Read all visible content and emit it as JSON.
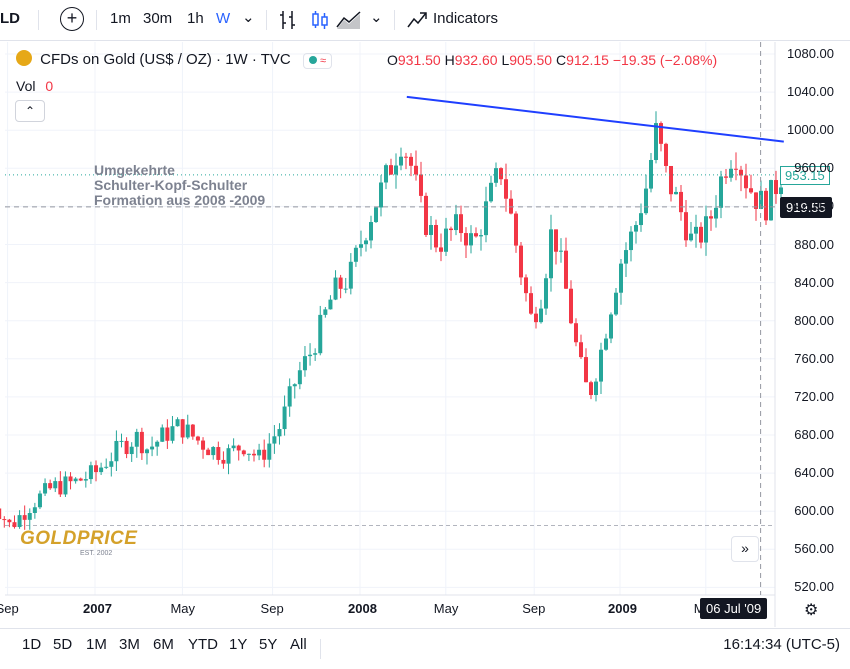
{
  "toolbar": {
    "symbol_fragment": "LD",
    "intervals": [
      "1m",
      "30m",
      "1h",
      "W"
    ],
    "indicators_label": "Indicators"
  },
  "legend": {
    "title": "CFDs on Gold (US$ / OZ) · 1W · TVC",
    "o_key": "O",
    "o_val": "931.50",
    "h_key": "H",
    "h_val": "932.60",
    "l_key": "L",
    "l_val": "905.50",
    "c_key": "C",
    "c_val": "912.15",
    "change": "−19.35 (−2.08%)",
    "vol_label": "Vol",
    "vol_value": "0"
  },
  "annotation": {
    "line1": "Umgekehrte",
    "line2": "Schulter-Kopf-Schulter",
    "line3": "Formation aus 2008 -2009"
  },
  "logo": {
    "text": "GOLDPRICE",
    "sub": "EST. 2002"
  },
  "price_tags": {
    "last": "953.15",
    "crosshair": "919.55",
    "time_cursor": "06 Jul '09"
  },
  "bottom": {
    "ranges": [
      "1D",
      "5D",
      "1M",
      "3M",
      "6M",
      "YTD",
      "1Y",
      "5Y",
      "All"
    ],
    "clock": "16:14:34 (UTC-5)"
  },
  "colors": {
    "up": "#26a69a",
    "down": "#f23645",
    "trendline": "#1f3fff",
    "accent": "#2962ff"
  },
  "chart_data": {
    "type": "candlestick",
    "y_axis_ticks": [
      1080,
      1040,
      1000,
      960,
      920,
      880,
      840,
      800,
      760,
      720,
      680,
      640,
      600,
      560,
      520
    ],
    "y_tick_labels": [
      "1080.00",
      "1040.00",
      "1000.00",
      "960.00",
      "920.00",
      "880.00",
      "840.00",
      "800.00",
      "760.00",
      "720.00",
      "680.00",
      "640.00",
      "600.00",
      "560.00",
      "520.00"
    ],
    "ylim": [
      505,
      1095
    ],
    "x_tick_labels": [
      "Sep",
      "2007",
      "May",
      "Sep",
      "2008",
      "May",
      "Sep",
      "2009",
      "M"
    ],
    "x_tick_bold": [
      false,
      true,
      false,
      false,
      true,
      false,
      false,
      true,
      false
    ],
    "price_path": [
      [
        2006.6,
        616
      ],
      [
        2006.68,
        584
      ],
      [
        2006.76,
        608
      ],
      [
        2006.84,
        625
      ],
      [
        2006.92,
        630
      ],
      [
        2007.0,
        640
      ],
      [
        2007.04,
        652
      ],
      [
        2007.1,
        668
      ],
      [
        2007.16,
        678
      ],
      [
        2007.2,
        665
      ],
      [
        2007.26,
        680
      ],
      [
        2007.32,
        690
      ],
      [
        2007.38,
        676
      ],
      [
        2007.44,
        665
      ],
      [
        2007.5,
        660
      ],
      [
        2007.56,
        670
      ],
      [
        2007.62,
        655
      ],
      [
        2007.66,
        672
      ],
      [
        2007.7,
        690
      ],
      [
        2007.76,
        740
      ],
      [
        2007.82,
        770
      ],
      [
        2007.86,
        800
      ],
      [
        2007.9,
        830
      ],
      [
        2007.96,
        845
      ],
      [
        2008.0,
        880
      ],
      [
        2008.04,
        910
      ],
      [
        2008.1,
        950
      ],
      [
        2008.16,
        990
      ],
      [
        2008.2,
        960
      ],
      [
        2008.24,
        910
      ],
      [
        2008.3,
        880
      ],
      [
        2008.38,
        900
      ],
      [
        2008.44,
        880
      ],
      [
        2008.5,
        930
      ],
      [
        2008.54,
        960
      ],
      [
        2008.58,
        910
      ],
      [
        2008.62,
        850
      ],
      [
        2008.66,
        800
      ],
      [
        2008.7,
        830
      ],
      [
        2008.74,
        900
      ],
      [
        2008.78,
        850
      ],
      [
        2008.84,
        760
      ],
      [
        2008.88,
        720
      ],
      [
        2008.92,
        760
      ],
      [
        2008.96,
        810
      ],
      [
        2009.0,
        860
      ],
      [
        2009.06,
        900
      ],
      [
        2009.1,
        940
      ],
      [
        2009.14,
        1000
      ],
      [
        2009.18,
        950
      ],
      [
        2009.22,
        925
      ],
      [
        2009.28,
        880
      ],
      [
        2009.34,
        900
      ],
      [
        2009.4,
        960
      ],
      [
        2009.44,
        980
      ],
      [
        2009.48,
        950
      ],
      [
        2009.52,
        930
      ],
      [
        2009.56,
        920
      ],
      [
        2009.62,
        953
      ]
    ],
    "trendline": {
      "from": [
        2008.18,
        1035
      ],
      "to": [
        2009.63,
        988
      ]
    },
    "crosshair": {
      "price": 919.55,
      "time": 2009.51
    },
    "support_line_price": 585
  }
}
